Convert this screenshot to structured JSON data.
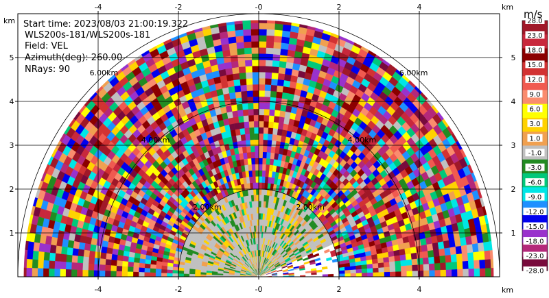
{
  "info": {
    "start_time": "Start time: 2023/08/03 21:00:19.322",
    "instrument": "WLS200s-181/WLS200s-181",
    "field": "Field: VEL",
    "azimuth": "Azimuth(deg): 260.00",
    "nrays": "NRays: 90"
  },
  "chart_data": {
    "type": "heatmap",
    "projection": "RHI-polar-half-disc",
    "x_unit": "km",
    "y_unit": "km",
    "x_ticks": [
      -4,
      -2,
      0,
      2,
      4
    ],
    "x_tick_labels": [
      "-4",
      "-2",
      "-0",
      "2",
      "4"
    ],
    "y_ticks": [
      1,
      2,
      3,
      4,
      5
    ],
    "y_tick_labels": [
      "1",
      "2",
      "3",
      "4",
      "5"
    ],
    "xlim": [
      -6.0,
      6.0
    ],
    "ylim": [
      0,
      6.0
    ],
    "max_range_km": 5.85,
    "range_rings": [
      {
        "radius_km": 2,
        "label": "2.00km"
      },
      {
        "radius_km": 4,
        "label": "4.00km"
      },
      {
        "radius_km": 6,
        "label": "6.00km"
      }
    ],
    "grid": true,
    "colorbar": {
      "unit": "m/s",
      "labels": [
        "28.0",
        "23.0",
        "18.0",
        "15.0",
        "12.0",
        "9.0",
        "6.0",
        "3.0",
        "1.0",
        "-1.0",
        "-3.0",
        "-6.0",
        "-9.0",
        "-12.0",
        "-15.0",
        "-18.0",
        "-23.0",
        "-28.0"
      ],
      "colors": [
        "#a01828",
        "#c8283c",
        "#8b0000",
        "#d23232",
        "#f05a50",
        "#fa8c6e",
        "#ffff00",
        "#ffd200",
        "#f0a050",
        "#c0c0c0",
        "#228b22",
        "#00c87a",
        "#00e6e6",
        "#1e90ff",
        "#0000ee",
        "#9932cc",
        "#b4287a",
        "#780a3c"
      ]
    },
    "dominant_pattern": "noise-dominated velocities beyond 2 km; low-speed returns (-3 to 3 m/s) near origin"
  },
  "axis": {
    "km_label": "km"
  }
}
